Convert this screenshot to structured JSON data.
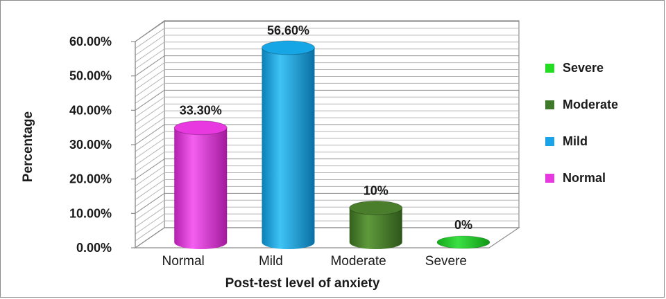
{
  "chart_data": {
    "type": "bar",
    "style": "3d-cylinder",
    "title": "",
    "xlabel": "Post-test level of anxiety",
    "ylabel": "Percentage",
    "ylim": [
      0,
      60
    ],
    "yticks": [
      0,
      10,
      20,
      30,
      40,
      50,
      60
    ],
    "ytick_labels": [
      "0.00%",
      "10.00%",
      "20.00%",
      "30.00%",
      "40.00%",
      "50.00%",
      "60.00%"
    ],
    "categories": [
      "Normal",
      "Mild",
      "Moderate",
      "Severe"
    ],
    "values": [
      33.3,
      56.6,
      10,
      0
    ],
    "data_labels": [
      "33.30%",
      "56.60%",
      "10%",
      "0%"
    ],
    "colors": [
      "#e838e0",
      "#16a6e6",
      "#4a7d2c",
      "#22c42a"
    ],
    "grid": true,
    "legend_position": "right",
    "legend": [
      {
        "label": "Severe",
        "color": "#22dd22"
      },
      {
        "label": "Moderate",
        "color": "#3e7a2a"
      },
      {
        "label": "Mild",
        "color": "#1aa3e8"
      },
      {
        "label": "Normal",
        "color": "#e838e0"
      }
    ]
  }
}
